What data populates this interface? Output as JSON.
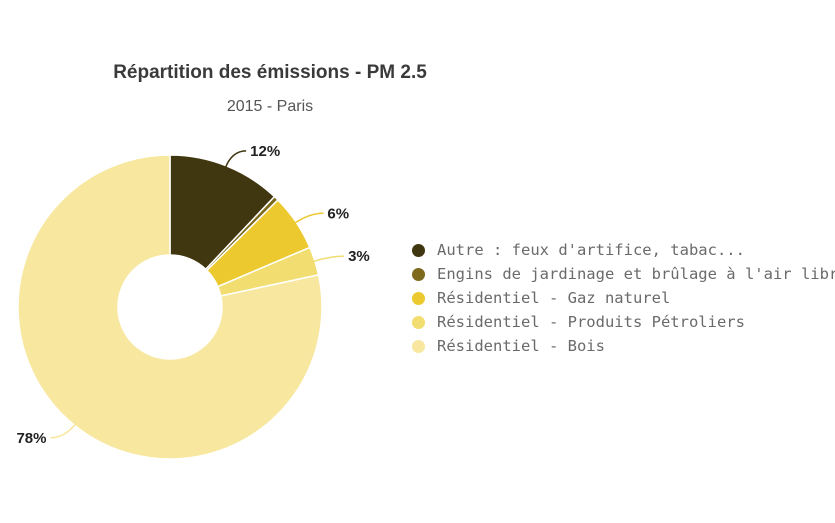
{
  "chart_data": {
    "type": "pie",
    "donut": true,
    "title": "Répartition des émissions - PM 2.5",
    "subtitle": "2015 - Paris",
    "legend_position": "right",
    "slices": [
      {
        "label": "Autre : feux d'artifice, tabac...",
        "value": 12,
        "value_label": "12%",
        "color": "#40360f"
      },
      {
        "label": "Engins de jardinage et brûlage à l'air libre",
        "value": 0.5,
        "value_label": "",
        "color": "#7d6a1c"
      },
      {
        "label": "Résidentiel - Gaz naturel",
        "value": 6,
        "value_label": "6%",
        "color": "#ecc92e"
      },
      {
        "label": "Résidentiel - Produits Pétroliers",
        "value": 3,
        "value_label": "3%",
        "color": "#f2dd70"
      },
      {
        "label": "Résidentiel - Bois",
        "value": 78,
        "value_label": "78%",
        "color": "#f7e79f"
      }
    ]
  }
}
